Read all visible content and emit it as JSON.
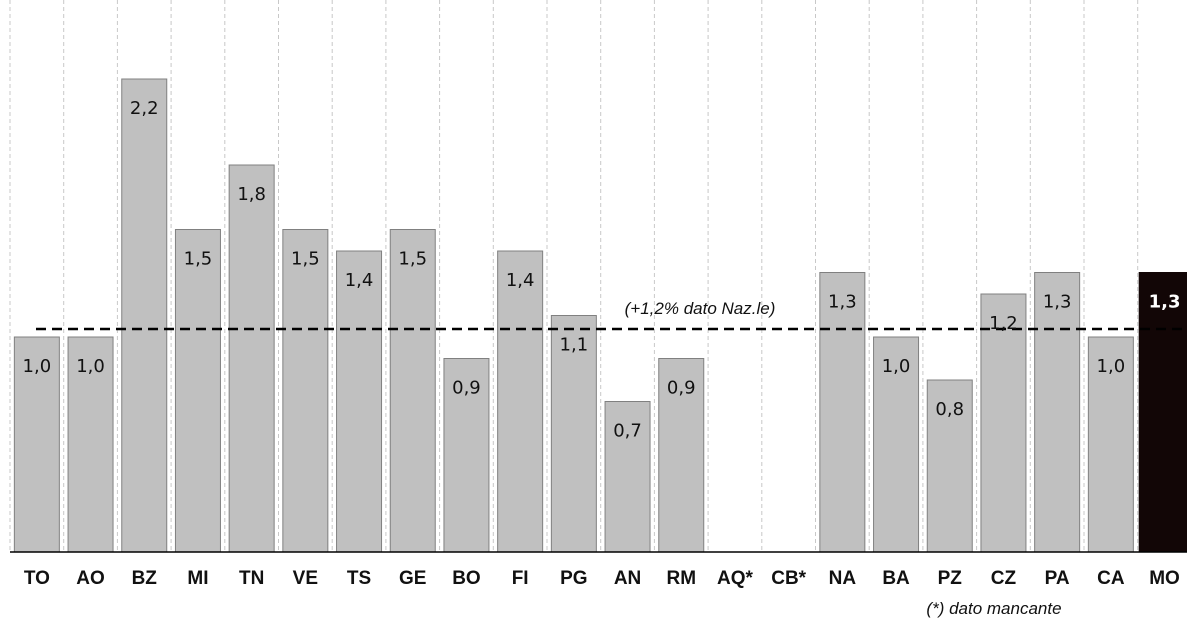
{
  "chart_data": {
    "type": "bar",
    "categories": [
      "TO",
      "AO",
      "BZ",
      "MI",
      "TN",
      "VE",
      "TS",
      "GE",
      "BO",
      "FI",
      "PG",
      "AN",
      "RM",
      "AQ*",
      "CB*",
      "NA",
      "BA",
      "PZ",
      "CZ",
      "PA",
      "CA",
      "MO"
    ],
    "values": [
      1.0,
      1.0,
      2.2,
      1.5,
      1.8,
      1.5,
      1.4,
      1.5,
      0.9,
      1.4,
      1.1,
      0.7,
      0.9,
      null,
      null,
      1.3,
      1.0,
      0.8,
      1.2,
      1.3,
      1.0,
      1.3
    ],
    "value_labels": [
      "1,0",
      "1,0",
      "2,2",
      "1,5",
      "1,8",
      "1,5",
      "1,4",
      "1,5",
      "0,9",
      "1,4",
      "1,1",
      "0,7",
      "0,9",
      "",
      "",
      "1,3",
      "1,0",
      "0,8",
      "1,2",
      "1,3",
      "1,0",
      "1,3"
    ],
    "highlight_category": "MO",
    "reference_line": {
      "value": 1.2,
      "label": "(+1,2% dato Naz.le)"
    },
    "footnote": "(*) dato mancante",
    "ylim": [
      0,
      2.5
    ],
    "grid": "vertical dashed",
    "colors": {
      "bar": "#c0c0c0",
      "bar_border": "#808080",
      "highlight": "#120606",
      "grid": "#c8c8c8",
      "reference": "#000000"
    }
  }
}
